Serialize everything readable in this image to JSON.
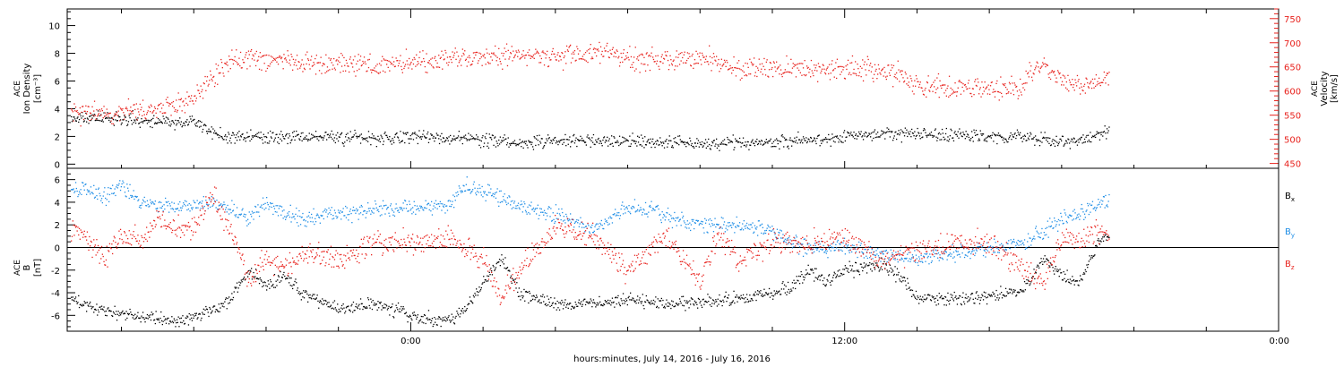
{
  "chart_data": [
    {
      "type": "scatter",
      "title": "",
      "panel": "ion-density-velocity",
      "x_range_hours": [
        -9.5,
        24
      ],
      "left_axis": {
        "label_lines": [
          "ACE",
          "Ion Density",
          "[cm⁻³]"
        ],
        "ylim": [
          -0.3,
          11.2
        ],
        "ticks": [
          0,
          2,
          4,
          6,
          8,
          10
        ]
      },
      "right_axis": {
        "label_lines": [
          "ACE",
          "Velocity",
          "[km/s]"
        ],
        "ylim": [
          440,
          770
        ],
        "ticks": [
          450,
          500,
          550,
          600,
          650,
          700,
          750
        ],
        "color": "#e8221d"
      },
      "series": [
        {
          "axis": "left",
          "color": "#000000",
          "points": [
            [
              -9.4,
              3.3
            ],
            [
              -8.5,
              3.4
            ],
            [
              -7.5,
              3.2
            ],
            [
              -6.7,
              3.0
            ],
            [
              -6,
              3.1
            ],
            [
              -5.5,
              2.3
            ],
            [
              -5,
              2.0
            ],
            [
              -4,
              2.0
            ],
            [
              -3,
              2.0
            ],
            [
              -2,
              2.0
            ],
            [
              -1,
              1.9
            ],
            [
              0,
              2.0
            ],
            [
              1,
              1.9
            ],
            [
              2,
              1.8
            ],
            [
              3,
              1.6
            ],
            [
              4,
              1.7
            ],
            [
              5,
              1.7
            ],
            [
              6,
              1.7
            ],
            [
              7,
              1.6
            ],
            [
              8,
              1.5
            ],
            [
              9,
              1.6
            ],
            [
              10,
              1.6
            ],
            [
              11,
              1.8
            ],
            [
              12,
              2.0
            ],
            [
              13,
              2.3
            ],
            [
              14,
              2.2
            ],
            [
              15,
              2.1
            ],
            [
              16,
              2.0
            ],
            [
              16.8,
              2.0
            ],
            [
              17.5,
              1.8
            ],
            [
              18.3,
              1.7
            ],
            [
              18.9,
              2.0
            ],
            [
              19.3,
              2.4
            ]
          ]
        },
        {
          "axis": "right",
          "color": "#e8221d",
          "points": [
            [
              -9.4,
              555
            ],
            [
              -8.8,
              556
            ],
            [
              -8,
              558
            ],
            [
              -7.5,
              560
            ],
            [
              -7,
              565
            ],
            [
              -6.5,
              575
            ],
            [
              -6,
              590
            ],
            [
              -5.5,
              630
            ],
            [
              -5,
              660
            ],
            [
              -4.5,
              670
            ],
            [
              -4,
              665
            ],
            [
              -3,
              660
            ],
            [
              -2,
              660
            ],
            [
              -1,
              655
            ],
            [
              0,
              660
            ],
            [
              1,
              665
            ],
            [
              2,
              670
            ],
            [
              3,
              675
            ],
            [
              4,
              670
            ],
            [
              5,
              680
            ],
            [
              6,
              670
            ],
            [
              7,
              665
            ],
            [
              8,
              670
            ],
            [
              9,
              645
            ],
            [
              10,
              650
            ],
            [
              11,
              645
            ],
            [
              12,
              648
            ],
            [
              13,
              645
            ],
            [
              13.5,
              635
            ],
            [
              14,
              610
            ],
            [
              15,
              608
            ],
            [
              16,
              606
            ],
            [
              16.9,
              604
            ],
            [
              17.1,
              640
            ],
            [
              17.5,
              655
            ],
            [
              18,
              620
            ],
            [
              18.5,
              610
            ],
            [
              19.3,
              628
            ]
          ]
        }
      ]
    },
    {
      "type": "scatter",
      "title": "",
      "panel": "magnetic-field",
      "x_range_hours": [
        -9.5,
        24
      ],
      "left_axis": {
        "label_lines": [
          "ACE",
          "B",
          "[nT]"
        ],
        "ylim": [
          -7.4,
          7.0
        ],
        "ticks": [
          -6,
          -4,
          -2,
          0,
          2,
          4,
          6
        ]
      },
      "series": [
        {
          "name": "Bx",
          "color": "#000000",
          "points": [
            [
              -9.4,
              -4.8
            ],
            [
              -9,
              -5.0
            ],
            [
              -8.5,
              -5.5
            ],
            [
              -8,
              -5.8
            ],
            [
              -7.5,
              -6.0
            ],
            [
              -7,
              -6.3
            ],
            [
              -6.5,
              -6.5
            ],
            [
              -6,
              -6.0
            ],
            [
              -5.5,
              -5.5
            ],
            [
              -5,
              -4.5
            ],
            [
              -4.5,
              -2.0
            ],
            [
              -4,
              -3.5
            ],
            [
              -3.5,
              -2.5
            ],
            [
              -3,
              -4.0
            ],
            [
              -2,
              -5.5
            ],
            [
              -1,
              -5.0
            ],
            [
              0,
              -6.0
            ],
            [
              1,
              -6.5
            ],
            [
              1.5,
              -5.5
            ],
            [
              2,
              -3.0
            ],
            [
              2.5,
              -1.0
            ],
            [
              3,
              -4.0
            ],
            [
              4,
              -5.0
            ],
            [
              5,
              -5.0
            ],
            [
              6,
              -4.5
            ],
            [
              7,
              -5.0
            ],
            [
              8,
              -4.8
            ],
            [
              9,
              -4.5
            ],
            [
              10,
              -4.0
            ],
            [
              10.5,
              -3.5
            ],
            [
              11,
              -2.0
            ],
            [
              11.5,
              -3.0
            ],
            [
              12,
              -2.0
            ],
            [
              13,
              -1.5
            ],
            [
              13.5,
              -2.5
            ],
            [
              14,
              -4.5
            ],
            [
              15,
              -4.5
            ],
            [
              16,
              -4.2
            ],
            [
              16.8,
              -4.0
            ],
            [
              17.2,
              -2.5
            ],
            [
              17.5,
              -1.0
            ],
            [
              18,
              -2.5
            ],
            [
              18.5,
              -3.0
            ],
            [
              19,
              0.5
            ],
            [
              19.3,
              0.9
            ]
          ]
        },
        {
          "name": "By",
          "color": "#1f8ee6",
          "points": [
            [
              -9.4,
              5.0
            ],
            [
              -9,
              5.2
            ],
            [
              -8.5,
              4.5
            ],
            [
              -8,
              5.5
            ],
            [
              -7.5,
              4.0
            ],
            [
              -7,
              3.8
            ],
            [
              -6.5,
              3.5
            ],
            [
              -6,
              3.8
            ],
            [
              -5.5,
              4.0
            ],
            [
              -5,
              3.5
            ],
            [
              -4.5,
              2.5
            ],
            [
              -4,
              4.0
            ],
            [
              -3.5,
              3.0
            ],
            [
              -3,
              2.5
            ],
            [
              -2,
              3.0
            ],
            [
              -1,
              3.5
            ],
            [
              0,
              3.5
            ],
            [
              1,
              3.8
            ],
            [
              1.5,
              5.5
            ],
            [
              2,
              5.0
            ],
            [
              2.5,
              4.5
            ],
            [
              3,
              3.5
            ],
            [
              4,
              3.0
            ],
            [
              5,
              1.5
            ],
            [
              6,
              3.5
            ],
            [
              7,
              3.0
            ],
            [
              8,
              2.0
            ],
            [
              9,
              2.0
            ],
            [
              10,
              1.5
            ],
            [
              10.5,
              0.5
            ],
            [
              11,
              0.0
            ],
            [
              12,
              0.0
            ],
            [
              13,
              -0.5
            ],
            [
              14,
              -1.0
            ],
            [
              15,
              -0.5
            ],
            [
              16,
              0.0
            ],
            [
              17,
              0.5
            ],
            [
              18,
              2.5
            ],
            [
              18.5,
              3.0
            ],
            [
              19,
              3.8
            ],
            [
              19.3,
              4.0
            ]
          ]
        },
        {
          "name": "Bz",
          "color": "#e8221d",
          "points": [
            [
              -9.4,
              2.0
            ],
            [
              -9,
              1.0
            ],
            [
              -8.5,
              -1.0
            ],
            [
              -8,
              1.5
            ],
            [
              -7.5,
              0.5
            ],
            [
              -7,
              2.5
            ],
            [
              -6.5,
              1.5
            ],
            [
              -6,
              2.0
            ],
            [
              -5.5,
              4.5
            ],
            [
              -5,
              2.0
            ],
            [
              -4.5,
              -3.0
            ],
            [
              -4,
              -1.0
            ],
            [
              -3.5,
              -2.0
            ],
            [
              -3,
              -0.5
            ],
            [
              -2,
              -1.0
            ],
            [
              -1,
              0.5
            ],
            [
              0,
              0.5
            ],
            [
              1,
              0.8
            ],
            [
              1.5,
              0.0
            ],
            [
              2,
              -1.0
            ],
            [
              2.5,
              -4.5
            ],
            [
              3,
              -2.0
            ],
            [
              4,
              2.0
            ],
            [
              5,
              1.0
            ],
            [
              6,
              -2.0
            ],
            [
              7,
              1.0
            ],
            [
              8,
              -3.0
            ],
            [
              8.5,
              1.5
            ],
            [
              9,
              -1.0
            ],
            [
              10,
              0.5
            ],
            [
              11,
              0.5
            ],
            [
              12,
              1.0
            ],
            [
              13,
              -1.0
            ],
            [
              14,
              -0.5
            ],
            [
              15,
              0.5
            ],
            [
              16,
              0.5
            ],
            [
              17,
              -2.0
            ],
            [
              17.5,
              -3.0
            ],
            [
              18,
              1.0
            ],
            [
              18.5,
              0.5
            ],
            [
              19,
              1.5
            ],
            [
              19.3,
              0.8
            ]
          ]
        }
      ],
      "legend": [
        "B",
        "B",
        "B"
      ],
      "legend_subscripts": [
        "x",
        "y",
        "z"
      ],
      "legend_colors": [
        "#000000",
        "#1f8ee6",
        "#e8221d"
      ],
      "legend_placement": "right"
    }
  ],
  "x_axis": {
    "major_ticks": [
      {
        "hour": 0,
        "label": "0:00"
      },
      {
        "hour": 12,
        "label": "12:00"
      },
      {
        "hour": 24,
        "label": "0:00"
      }
    ],
    "minor_tick_interval_hours": 2,
    "xlabel": "hours:minutes, July 14, 2016 - July 16, 2016"
  },
  "colors": {
    "black": "#000000",
    "red": "#e8221d",
    "blue": "#1f8ee6"
  }
}
